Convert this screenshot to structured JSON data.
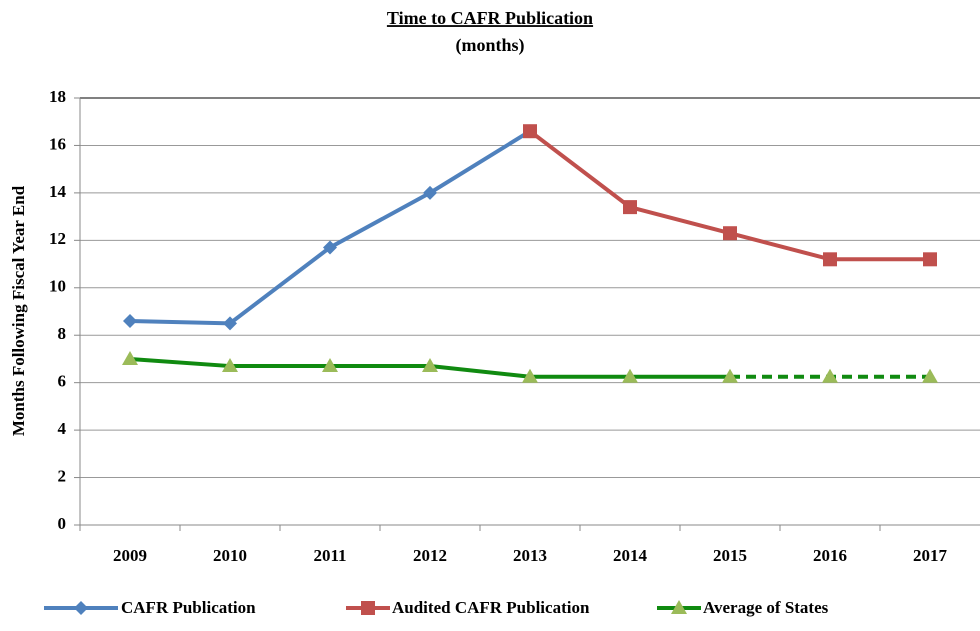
{
  "chart_data": {
    "type": "line",
    "title": "Time to CAFR Publication",
    "subtitle": "(months)",
    "y_label": "Months Following Fiscal Year End",
    "categories": [
      "2009",
      "2010",
      "2011",
      "2012",
      "2013",
      "2014",
      "2015",
      "2016",
      "2017"
    ],
    "series": [
      {
        "name": "CAFR Publication",
        "color": "#4f81bd",
        "marker": "diamond",
        "values": [
          8.6,
          8.5,
          11.7,
          14.0,
          16.6,
          null,
          null,
          null,
          null
        ]
      },
      {
        "name": "Audited CAFR Publication",
        "color": "#c0504d",
        "marker": "square",
        "values": [
          null,
          null,
          null,
          null,
          16.6,
          13.4,
          12.3,
          11.2,
          11.2
        ]
      },
      {
        "name": "Average of States",
        "color": "#108a10",
        "marker_color": "#9bbb59",
        "marker": "triangle",
        "dash_from": "2015",
        "values": [
          7.0,
          6.7,
          6.7,
          6.7,
          6.25,
          6.25,
          6.25,
          6.25,
          6.25
        ]
      }
    ],
    "ylim": [
      0,
      18
    ],
    "yticks": [
      0,
      2,
      4,
      6,
      8,
      10,
      12,
      14,
      16,
      18
    ],
    "grid": true,
    "legend": "bottom"
  }
}
